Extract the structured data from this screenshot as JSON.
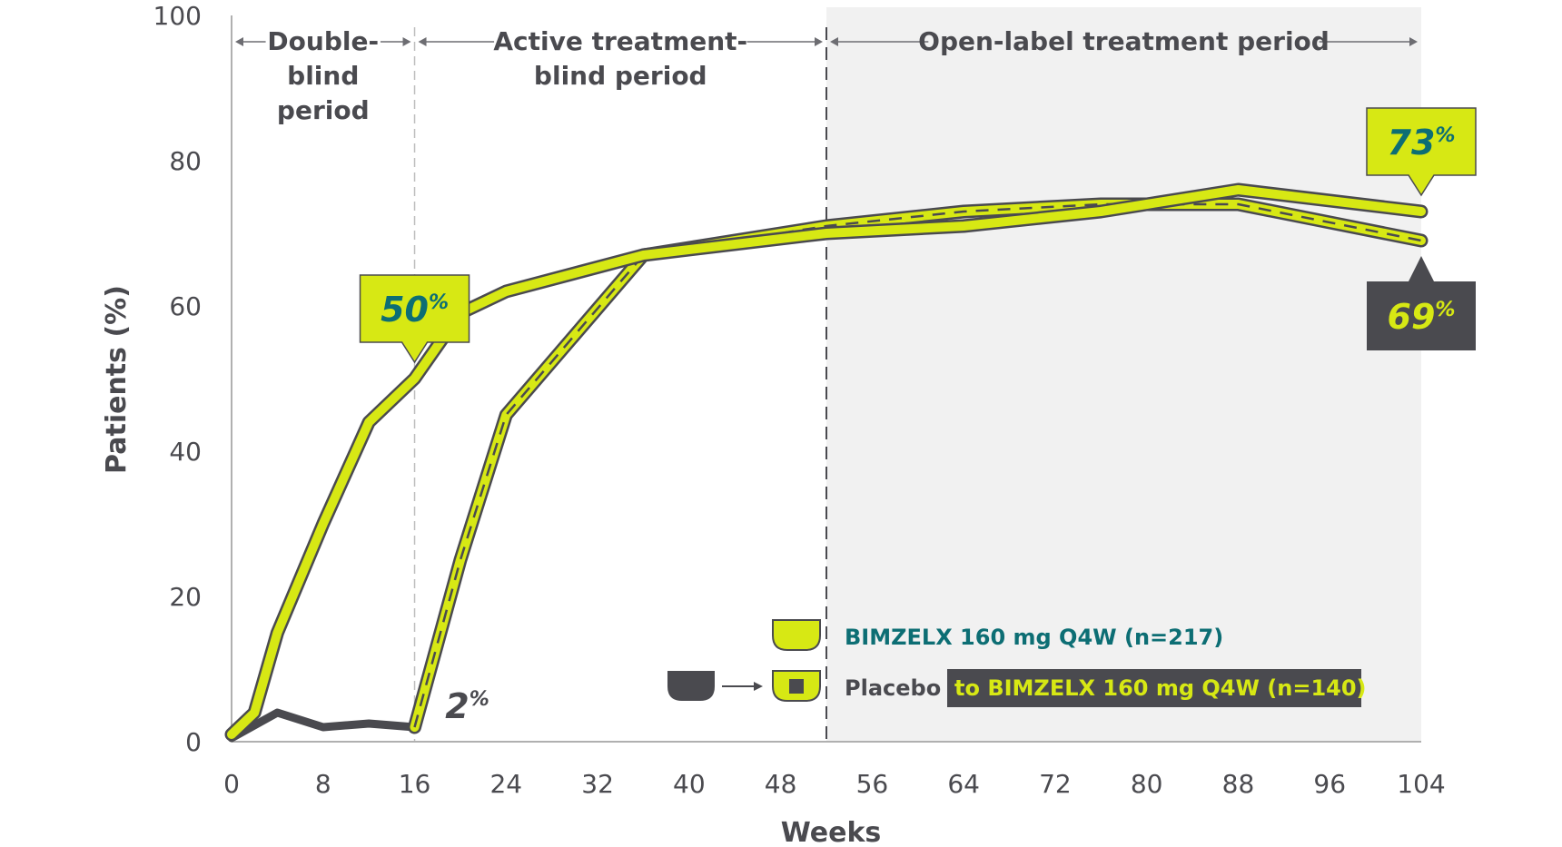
{
  "chart_data": {
    "type": "line",
    "xlabel": "Weeks",
    "ylabel": "Patients (%)",
    "xlim": [
      0,
      104
    ],
    "ylim": [
      0,
      100
    ],
    "xticks": [
      0,
      8,
      16,
      24,
      32,
      40,
      48,
      56,
      64,
      72,
      80,
      88,
      96,
      104
    ],
    "yticks": [
      0,
      20,
      40,
      60,
      80,
      100
    ],
    "periods": [
      {
        "label_lines": [
          "Double-",
          "blind",
          "period"
        ],
        "x_start": 0,
        "x_end": 16
      },
      {
        "label_lines": [
          "Active treatment-",
          "blind period"
        ],
        "x_start": 16,
        "x_end": 52
      },
      {
        "label_lines": [
          "Open-label treatment period"
        ],
        "x_start": 52,
        "x_end": 104,
        "shaded": true
      }
    ],
    "series": [
      {
        "name": "BIMZELX 160 mg Q4W (n=217)",
        "color": "#d7e814",
        "outline": "#4a4a4f",
        "style": "solid",
        "x": [
          0,
          2,
          4,
          8,
          12,
          16,
          20,
          24,
          36,
          52,
          64,
          76,
          80,
          88,
          104
        ],
        "y": [
          1,
          4,
          15,
          30,
          44,
          50,
          59,
          62,
          67,
          70,
          71,
          73,
          74,
          76,
          73
        ]
      },
      {
        "name": "Placebo",
        "color": "#4a4a4f",
        "style": "solid",
        "x": [
          0,
          4,
          8,
          12,
          16
        ],
        "y": [
          0.5,
          4,
          2,
          2.5,
          2
        ]
      },
      {
        "name": "Placebo to BIMZELX 160 mg Q4W (n=140)",
        "color": "#d7e814",
        "outline": "#4a4a4f",
        "style": "dashed",
        "x": [
          16,
          20,
          24,
          36,
          52,
          64,
          76,
          80,
          88,
          104
        ],
        "y": [
          2,
          25,
          45,
          67,
          71,
          73,
          74,
          74,
          74,
          69
        ]
      }
    ],
    "annotations": [
      {
        "value": "50",
        "unit": "%",
        "x": 16,
        "y": 50,
        "style": "lime-box-pointing-down",
        "text_color": "#0d6e74"
      },
      {
        "value": "2",
        "unit": "%",
        "x": 16,
        "y": 2,
        "style": "plain-text",
        "text_color": "#4a4a4f"
      },
      {
        "value": "73",
        "unit": "%",
        "x": 104,
        "y": 73,
        "style": "lime-box-pointing-down",
        "text_color": "#0d6e74"
      },
      {
        "value": "69",
        "unit": "%",
        "x": 104,
        "y": 69,
        "style": "dark-box-pointing-up",
        "text_color": "#d7e814"
      }
    ],
    "legend": {
      "placement": "bottom-right",
      "items": [
        {
          "label": "BIMZELX 160 mg Q4W (n=217)",
          "text_color": "#0d6e74"
        },
        {
          "label_prefix": "Placebo",
          "label_highlight": "to BIMZELX 160 mg Q4W (n=140)",
          "prefix_color": "#4a4a4f",
          "highlight_color": "#d7e814",
          "highlight_bg": "#4a4a4f"
        }
      ]
    },
    "colors": {
      "lime": "#d7e814",
      "dark": "#4a4a4f",
      "teal": "#0d6e74",
      "shade": "#f1f1f1",
      "axis": "#b0b0b0"
    }
  }
}
